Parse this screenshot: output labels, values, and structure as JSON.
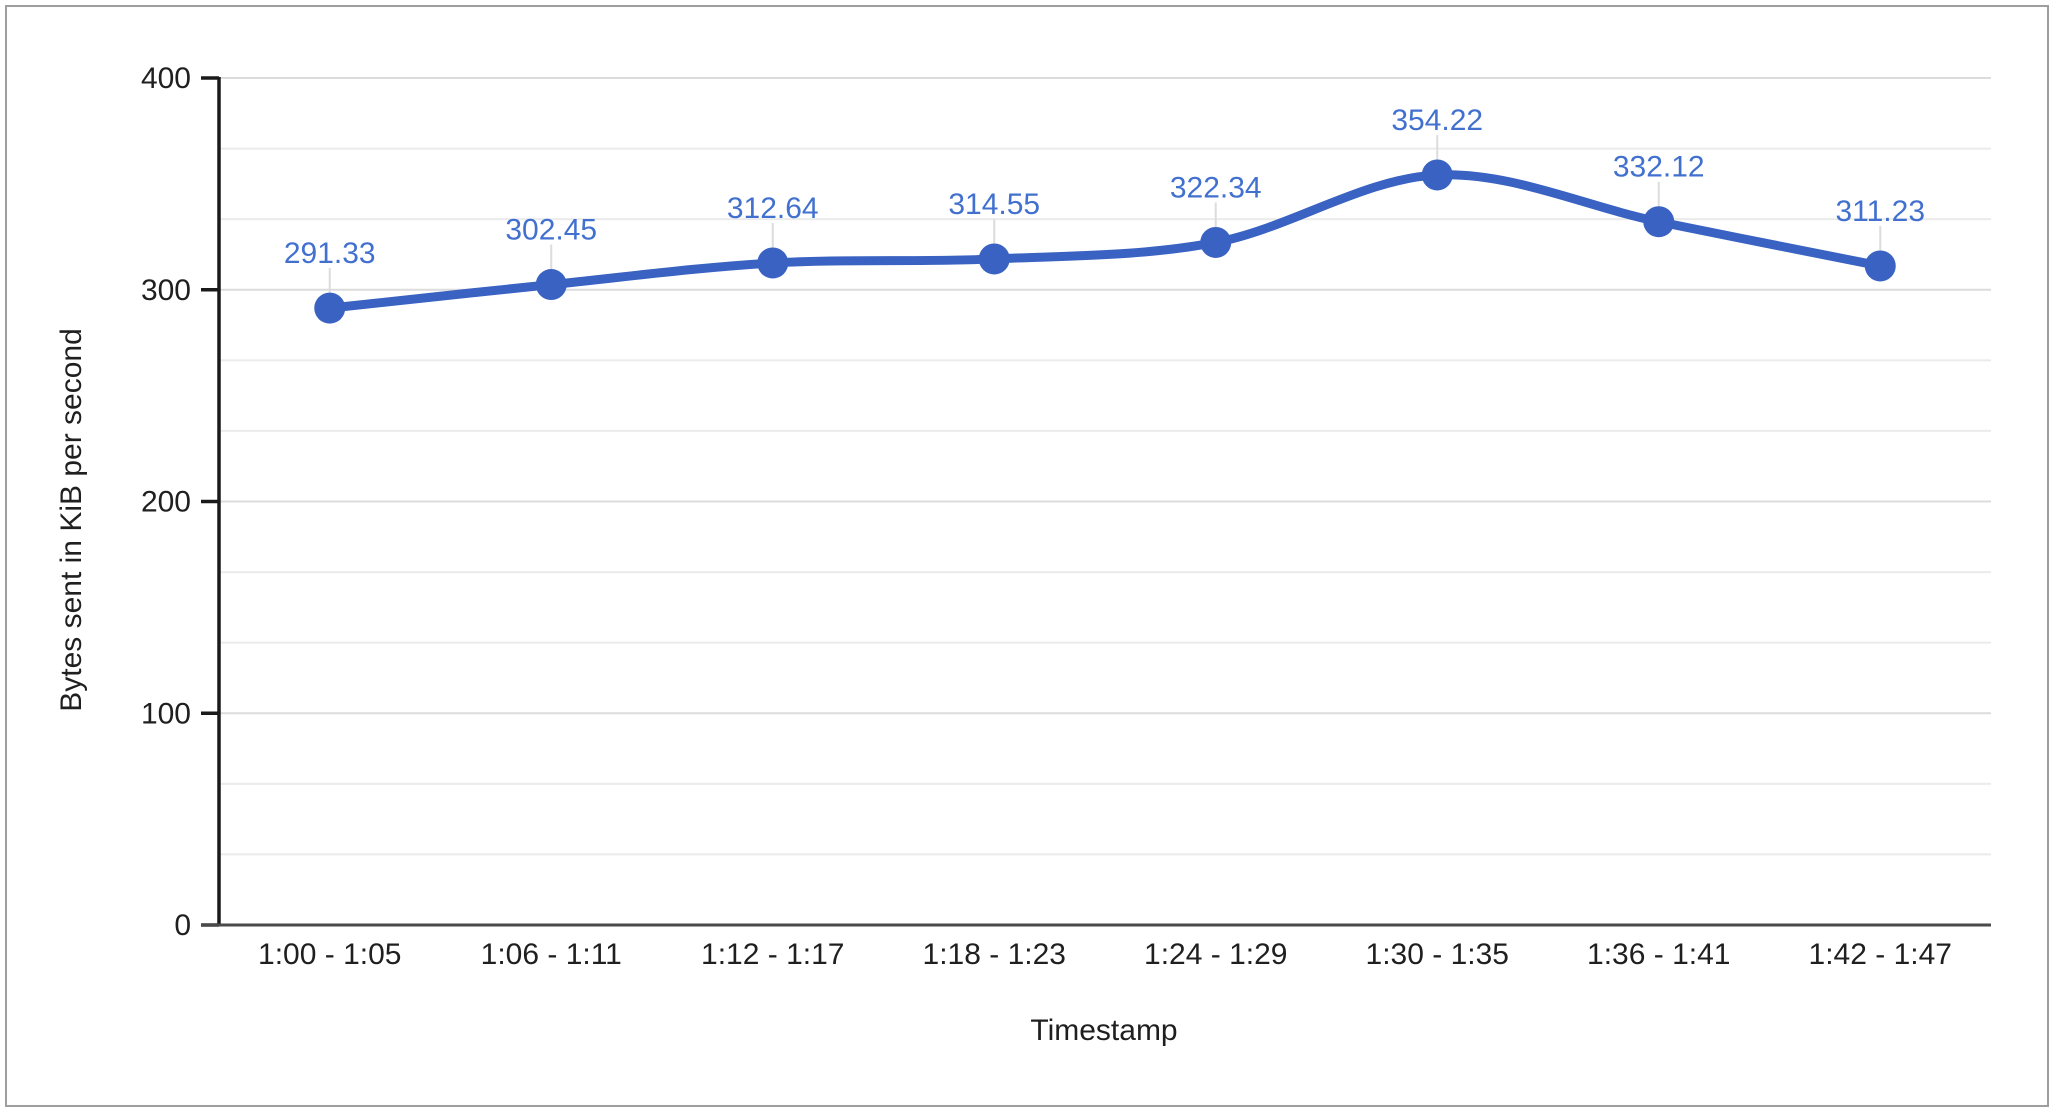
{
  "chart_data": {
    "type": "line",
    "smooth": true,
    "xlabel": "Timestamp",
    "ylabel": "Bytes sent in KiB per second",
    "categories": [
      "1:00 - 1:05",
      "1:06 - 1:11",
      "1:12 - 1:17",
      "1:18 - 1:23",
      "1:24 - 1:29",
      "1:30 - 1:35",
      "1:36 - 1:41",
      "1:42 - 1:47"
    ],
    "values": [
      291.33,
      302.45,
      312.64,
      314.55,
      322.34,
      354.22,
      332.12,
      311.23
    ],
    "data_labels": [
      "291.33",
      "302.45",
      "312.64",
      "314.55",
      "322.34",
      "354.22",
      "332.12",
      "311.23"
    ],
    "ylim": [
      0,
      400
    ],
    "y_ticks": [
      0,
      100,
      200,
      300,
      400
    ],
    "y_tick_labels": [
      "0",
      "100",
      "200",
      "300",
      "400"
    ],
    "minor_divisions_per_major": 3,
    "grid": true,
    "legend": "none",
    "marker": "circle",
    "colors": {
      "series_line": "#3a62c2",
      "marker_fill": "#3a62c2",
      "data_label": "#4170cf",
      "major_gridline": "#dcdcdc",
      "minor_gridline": "#ebebeb",
      "axis_line": "#1a1a1a",
      "baseline": "#4a4a4a",
      "tick_label": "#1f1f1f",
      "leader_line": "#dcdcdc",
      "frame_border": "#9e9e9e"
    }
  }
}
